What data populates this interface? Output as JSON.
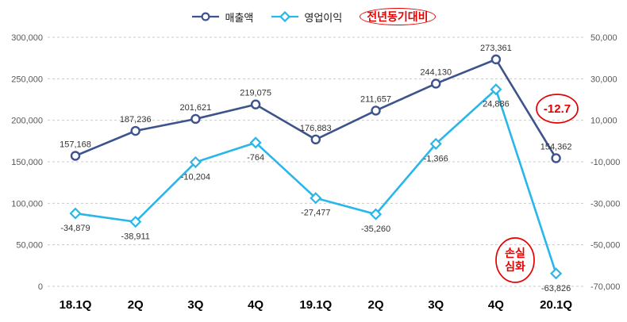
{
  "colors": {
    "revenue": "#3D538C",
    "profit": "#29B6E8",
    "annotation": "#E60000",
    "grid": "#C9C9C9",
    "tick_text": "#595959",
    "label_text": "#333333",
    "x_label": "#000000",
    "background": "#FFFFFF"
  },
  "legend": {
    "items": [
      {
        "label": "매출액",
        "marker": "circle"
      },
      {
        "label": "영업이익",
        "marker": "diamond"
      },
      {
        "label": "전년동기대비",
        "marker": "red-oval"
      }
    ]
  },
  "chart_data": {
    "type": "line",
    "title": "",
    "categories": [
      "18.1Q",
      "2Q",
      "3Q",
      "4Q",
      "19.1Q",
      "2Q",
      "3Q",
      "4Q",
      "20.1Q"
    ],
    "series": [
      {
        "name": "매출액",
        "axis": "left",
        "marker": "circle",
        "values": [
          157168,
          187236,
          201621,
          219075,
          176883,
          211657,
          244130,
          273361,
          154362
        ]
      },
      {
        "name": "영업이익",
        "axis": "right",
        "marker": "diamond",
        "values": [
          -34879,
          -38911,
          -10204,
          -764,
          -27477,
          -35260,
          -1366,
          24886,
          -63826
        ]
      }
    ],
    "left_axis": {
      "min": 0,
      "max": 300000,
      "ticks": [
        "300,000",
        "250,000",
        "200,000",
        "150,000",
        "100,000",
        "50,000",
        "0"
      ]
    },
    "right_axis": {
      "min": -70000,
      "max": 50000,
      "ticks": [
        "50,000",
        "30,000",
        "10,000",
        "-10,000",
        "-30,000",
        "-50,000",
        "-70,000"
      ]
    },
    "grid": "dashed-horizontal",
    "legend_position": "top-center",
    "annotations": [
      {
        "name": "yoy_change",
        "text": "-12.7"
      },
      {
        "name": "loss_deepening",
        "lines": [
          "손실",
          "심화"
        ]
      }
    ]
  }
}
